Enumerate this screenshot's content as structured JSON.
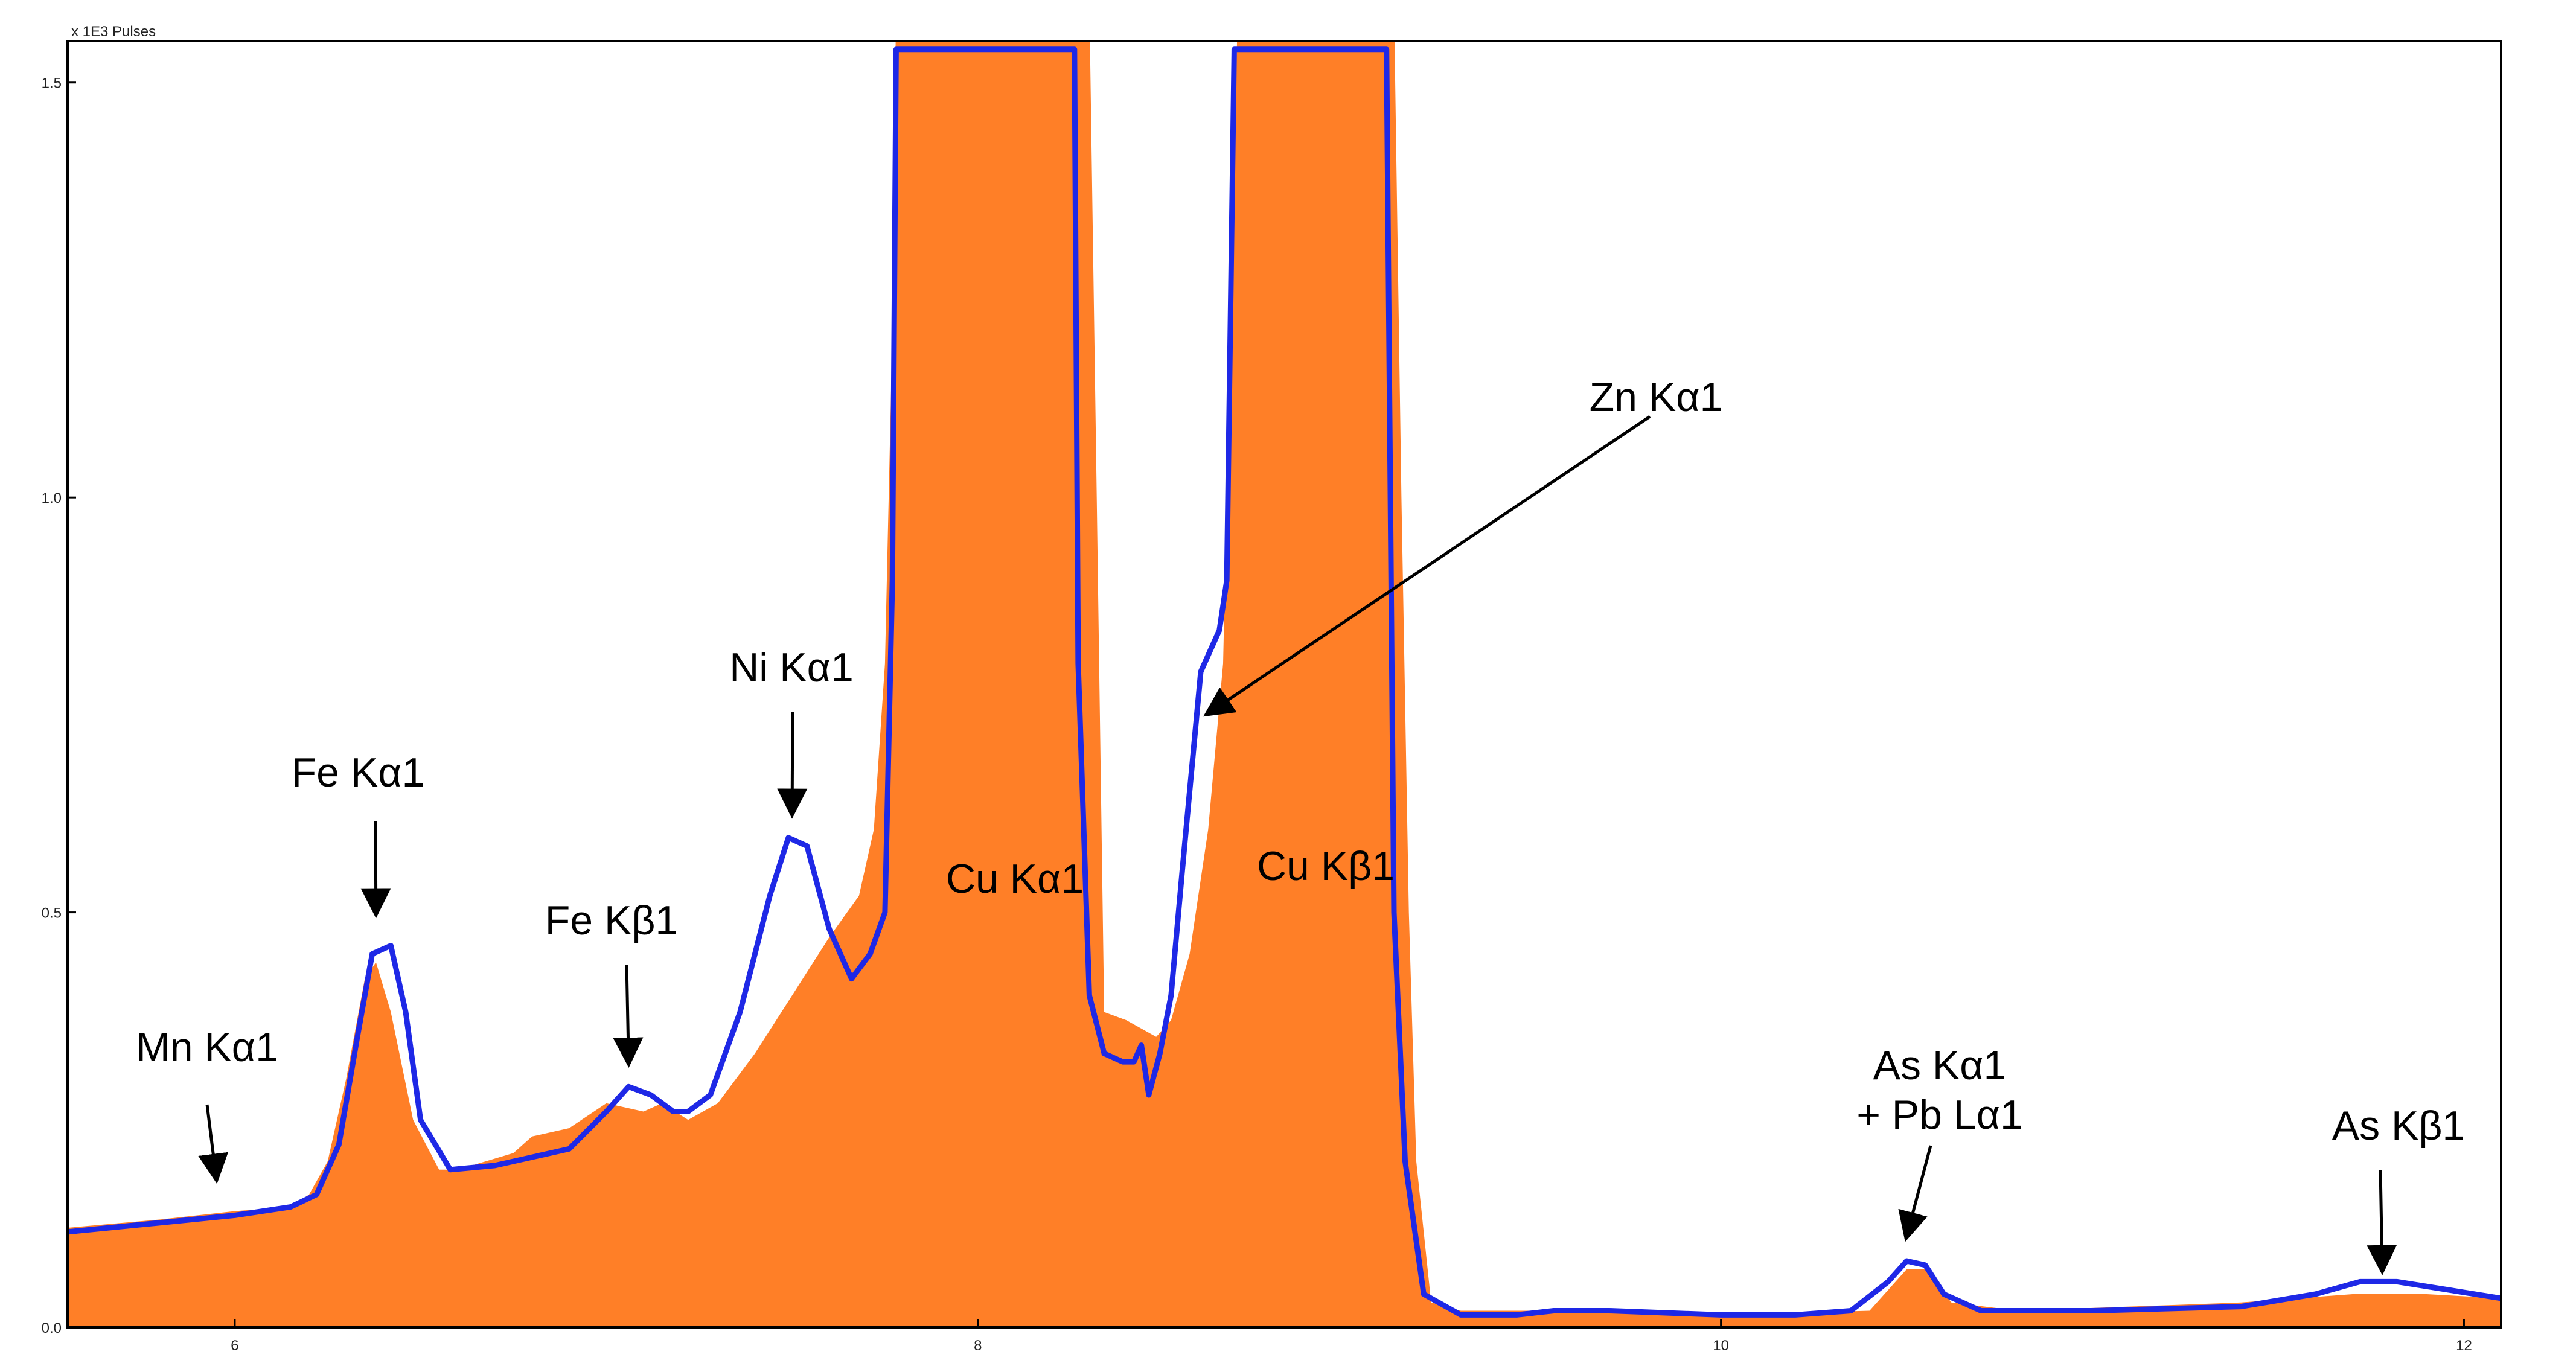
{
  "chart_data": {
    "type": "area",
    "title": "",
    "unit_label": "x 1E3 Pulses",
    "xlabel": "",
    "ylabel": "",
    "xlim": [
      5.55,
      12.1
    ],
    "ylim": [
      0.0,
      1.55
    ],
    "x_ticks": [
      6,
      8,
      10,
      12
    ],
    "x_tick_labels": [
      "6",
      "8",
      "10",
      "12"
    ],
    "y_ticks": [
      0.0,
      0.5,
      1.0,
      1.5
    ],
    "y_tick_labels": [
      "0.0",
      "0.5",
      "1.0",
      "1.5"
    ],
    "grid": false,
    "colors": {
      "fill": "#FF7F27",
      "line": "#1E28E6",
      "axis": "#000000"
    },
    "series": [
      {
        "style": "filled-area",
        "points": [
          [
            5.55,
            0.12
          ],
          [
            5.8,
            0.13
          ],
          [
            6.0,
            0.14
          ],
          [
            6.15,
            0.145
          ],
          [
            6.2,
            0.16
          ],
          [
            6.25,
            0.2
          ],
          [
            6.3,
            0.3
          ],
          [
            6.35,
            0.42
          ],
          [
            6.38,
            0.44
          ],
          [
            6.42,
            0.38
          ],
          [
            6.48,
            0.25
          ],
          [
            6.55,
            0.19
          ],
          [
            6.6,
            0.19
          ],
          [
            6.75,
            0.21
          ],
          [
            6.8,
            0.23
          ],
          [
            6.9,
            0.24
          ],
          [
            7.0,
            0.27
          ],
          [
            7.1,
            0.26
          ],
          [
            7.15,
            0.27
          ],
          [
            7.22,
            0.25
          ],
          [
            7.3,
            0.27
          ],
          [
            7.4,
            0.33
          ],
          [
            7.5,
            0.4
          ],
          [
            7.6,
            0.47
          ],
          [
            7.68,
            0.52
          ],
          [
            7.72,
            0.6
          ],
          [
            7.75,
            0.8
          ],
          [
            7.77,
            1.2
          ],
          [
            7.78,
            1.6
          ],
          [
            8.3,
            1.6
          ],
          [
            8.32,
            1.0
          ],
          [
            8.34,
            0.38
          ],
          [
            8.4,
            0.37
          ],
          [
            8.48,
            0.35
          ],
          [
            8.52,
            0.37
          ],
          [
            8.57,
            0.45
          ],
          [
            8.62,
            0.6
          ],
          [
            8.66,
            0.8
          ],
          [
            8.68,
            1.2
          ],
          [
            8.7,
            1.6
          ],
          [
            9.12,
            1.6
          ],
          [
            9.14,
            1.0
          ],
          [
            9.16,
            0.5
          ],
          [
            9.18,
            0.2
          ],
          [
            9.22,
            0.03
          ],
          [
            9.3,
            0.02
          ],
          [
            9.6,
            0.02
          ],
          [
            10.0,
            0.015
          ],
          [
            10.4,
            0.02
          ],
          [
            10.5,
            0.07
          ],
          [
            10.55,
            0.07
          ],
          [
            10.62,
            0.03
          ],
          [
            10.8,
            0.02
          ],
          [
            11.4,
            0.03
          ],
          [
            11.7,
            0.04
          ],
          [
            11.9,
            0.04
          ],
          [
            12.1,
            0.035
          ]
        ]
      },
      {
        "style": "line",
        "points": [
          [
            5.55,
            0.115
          ],
          [
            6.0,
            0.135
          ],
          [
            6.15,
            0.145
          ],
          [
            6.22,
            0.16
          ],
          [
            6.28,
            0.22
          ],
          [
            6.33,
            0.35
          ],
          [
            6.37,
            0.45
          ],
          [
            6.42,
            0.46
          ],
          [
            6.46,
            0.38
          ],
          [
            6.5,
            0.25
          ],
          [
            6.58,
            0.19
          ],
          [
            6.7,
            0.195
          ],
          [
            6.9,
            0.215
          ],
          [
            7.0,
            0.26
          ],
          [
            7.06,
            0.29
          ],
          [
            7.12,
            0.28
          ],
          [
            7.18,
            0.26
          ],
          [
            7.22,
            0.26
          ],
          [
            7.28,
            0.28
          ],
          [
            7.36,
            0.38
          ],
          [
            7.44,
            0.52
          ],
          [
            7.49,
            0.59
          ],
          [
            7.54,
            0.58
          ],
          [
            7.6,
            0.48
          ],
          [
            7.66,
            0.42
          ],
          [
            7.71,
            0.45
          ],
          [
            7.75,
            0.5
          ],
          [
            7.77,
            0.9
          ],
          [
            7.78,
            1.54
          ],
          [
            8.26,
            1.54
          ],
          [
            8.27,
            0.8
          ],
          [
            8.3,
            0.4
          ],
          [
            8.34,
            0.33
          ],
          [
            8.39,
            0.32
          ],
          [
            8.42,
            0.32
          ],
          [
            8.44,
            0.34
          ],
          [
            8.46,
            0.28
          ],
          [
            8.49,
            0.33
          ],
          [
            8.52,
            0.4
          ],
          [
            8.55,
            0.55
          ],
          [
            8.6,
            0.79
          ],
          [
            8.65,
            0.84
          ],
          [
            8.67,
            0.9
          ],
          [
            8.69,
            1.54
          ],
          [
            9.1,
            1.54
          ],
          [
            9.12,
            0.5
          ],
          [
            9.15,
            0.2
          ],
          [
            9.2,
            0.04
          ],
          [
            9.3,
            0.015
          ],
          [
            9.45,
            0.015
          ],
          [
            9.55,
            0.02
          ],
          [
            9.7,
            0.02
          ],
          [
            10.0,
            0.015
          ],
          [
            10.2,
            0.015
          ],
          [
            10.35,
            0.02
          ],
          [
            10.45,
            0.055
          ],
          [
            10.5,
            0.08
          ],
          [
            10.55,
            0.075
          ],
          [
            10.6,
            0.04
          ],
          [
            10.7,
            0.02
          ],
          [
            11.0,
            0.02
          ],
          [
            11.4,
            0.025
          ],
          [
            11.6,
            0.04
          ],
          [
            11.72,
            0.055
          ],
          [
            11.82,
            0.055
          ],
          [
            12.1,
            0.035
          ]
        ]
      }
    ],
    "annotations": [
      {
        "lines": [
          "Mn Kα1"
        ],
        "arrow_to": [
          5.95,
          0.18
        ]
      },
      {
        "lines": [
          "Fe Kα1"
        ],
        "arrow_to": [
          6.38,
          0.5
        ]
      },
      {
        "lines": [
          "Fe Kβ1"
        ],
        "arrow_to": [
          7.06,
          0.32
        ]
      },
      {
        "lines": [
          "Ni Kα1"
        ],
        "arrow_to": [
          7.5,
          0.62
        ]
      },
      {
        "lines": [
          "Cu Kα1"
        ],
        "arrow_to": null
      },
      {
        "lines": [
          "Cu Kβ1"
        ],
        "arrow_to": null
      },
      {
        "lines": [
          "Zn Kα1"
        ],
        "arrow_to": [
          8.62,
          0.74
        ]
      },
      {
        "lines": [
          "As Kα1",
          "+ Pb Lα1"
        ],
        "arrow_to": [
          10.5,
          0.11
        ]
      },
      {
        "lines": [
          "As Kβ1"
        ],
        "arrow_to": [
          11.78,
          0.07
        ]
      }
    ]
  }
}
